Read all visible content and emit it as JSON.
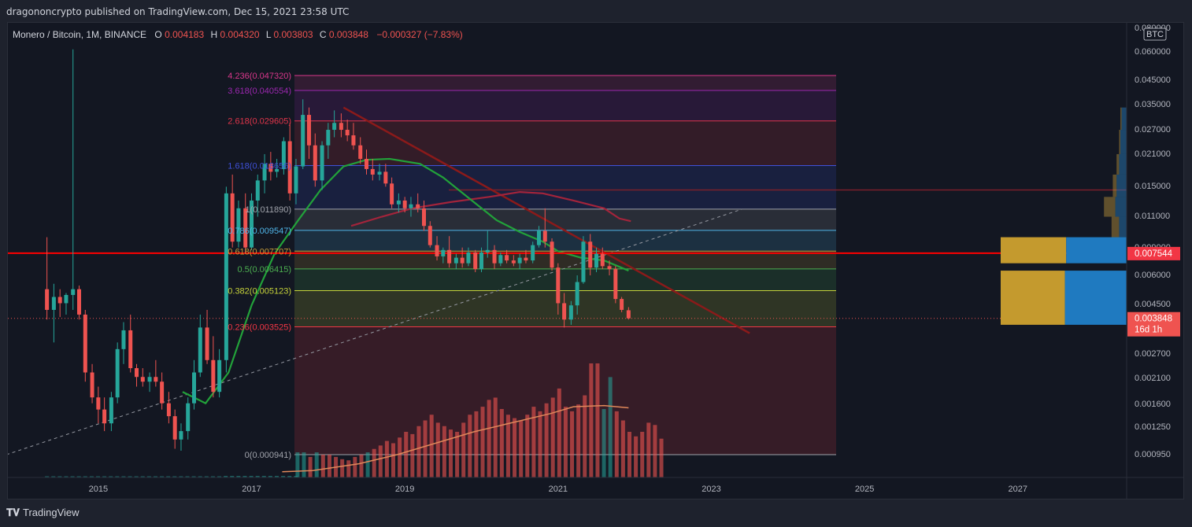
{
  "header": {
    "text": "dragononcrypto published on TradingView.com, Dec 15, 2021 23:58 UTC"
  },
  "footer": {
    "brand": "TradingView",
    "logo": "tradingview-logo"
  },
  "legend": {
    "symbol": "Monero / Bitcoin, 1M, BINANCE",
    "o_label": "O",
    "o_value": "0.004183",
    "h_label": "H",
    "h_value": "0.004320",
    "l_label": "L",
    "l_value": "0.003803",
    "c_label": "C",
    "c_value": "0.003848",
    "change": "−0.000327 (−7.83%)"
  },
  "axis": {
    "unit": "BTC",
    "price_labels": [
      "0.080000",
      "0.060000",
      "0.045000",
      "0.035000",
      "0.027000",
      "0.021000",
      "0.015000",
      "0.011000",
      "0.009000",
      "0.006000",
      "0.004500",
      "0.002700",
      "0.002100",
      "0.001600",
      "0.001250",
      "0.000950"
    ],
    "time_labels": [
      "2015",
      "2017",
      "2019",
      "2021",
      "2023",
      "2025",
      "2027"
    ],
    "current_price": "0.003848",
    "countdown": "16d 1h",
    "hline_price": "0.007544"
  },
  "chart_data": {
    "type": "candlestick",
    "scale": "log",
    "title": "Monero / Bitcoin, 1M, BINANCE",
    "ylim": [
      0.0007,
      0.08
    ],
    "xlim": [
      2013.8,
      2028.4
    ],
    "colors": {
      "up": "#26a69a",
      "down": "#ef5350",
      "fib_line_red": "#f23645",
      "hline": "#ff0000",
      "trendline": "#8b1a1a",
      "ma_green": "#22a23a",
      "ma_red": "#a3243b",
      "volume_ma": "#e0885a"
    },
    "fib_levels": [
      {
        "label": "4.236(0.047320)",
        "value": 0.04732,
        "color": "#d9378b"
      },
      {
        "label": "3.618(0.040554)",
        "value": 0.040554,
        "color": "#9c27b0"
      },
      {
        "label": "2.618(0.029605)",
        "value": 0.029605,
        "color": "#e0354a"
      },
      {
        "label": "1.618(0.018656)",
        "value": 0.018656,
        "color": "#3f51d8"
      },
      {
        "label": "1(0.011890)",
        "value": 0.01189,
        "color": "#a0a3ab"
      },
      {
        "label": "0.786(0.009547)",
        "value": 0.009547,
        "color": "#4fb4e8"
      },
      {
        "label": "0.618(0.007707)",
        "value": 0.007707,
        "color": "#c69b3a"
      },
      {
        "label": "0.5(0.006415)",
        "value": 0.006415,
        "color": "#4caf50"
      },
      {
        "label": "0.382(0.005123)",
        "value": 0.005123,
        "color": "#c5d13a"
      },
      {
        "label": "0.236(0.003525)",
        "value": 0.003525,
        "color": "#f23645"
      },
      {
        "label": "0(0.000941)",
        "value": 0.000941,
        "color": "#a0a3ab"
      }
    ],
    "candles": [
      [
        2014.33,
        0.0052,
        0.0089,
        0.0038,
        0.0042
      ],
      [
        2014.42,
        0.0042,
        0.0055,
        0.003,
        0.0048
      ],
      [
        2014.5,
        0.0048,
        0.0052,
        0.0039,
        0.0045
      ],
      [
        2014.58,
        0.0045,
        0.005,
        0.004,
        0.0049
      ],
      [
        2014.67,
        0.0049,
        0.062,
        0.0042,
        0.0052
      ],
      [
        2014.75,
        0.0052,
        0.0054,
        0.0038,
        0.004
      ],
      [
        2014.83,
        0.004,
        0.0042,
        0.002,
        0.0022
      ],
      [
        2014.92,
        0.0022,
        0.0024,
        0.0016,
        0.0017
      ],
      [
        2015.0,
        0.0017,
        0.0019,
        0.0013,
        0.0015
      ],
      [
        2015.08,
        0.0015,
        0.0017,
        0.0012,
        0.0013
      ],
      [
        2015.17,
        0.0013,
        0.0018,
        0.0012,
        0.0017
      ],
      [
        2015.25,
        0.0017,
        0.003,
        0.0016,
        0.0028
      ],
      [
        2015.33,
        0.0028,
        0.0037,
        0.0024,
        0.0034
      ],
      [
        2015.42,
        0.0034,
        0.004,
        0.0022,
        0.0023
      ],
      [
        2015.5,
        0.0023,
        0.0024,
        0.0019,
        0.0021
      ],
      [
        2015.58,
        0.0021,
        0.0023,
        0.0019,
        0.002
      ],
      [
        2015.67,
        0.002,
        0.0022,
        0.0018,
        0.0021
      ],
      [
        2015.75,
        0.0021,
        0.0025,
        0.0019,
        0.002
      ],
      [
        2015.83,
        0.002,
        0.0022,
        0.0015,
        0.0016
      ],
      [
        2015.92,
        0.0016,
        0.0018,
        0.0013,
        0.0014
      ],
      [
        2016.0,
        0.0014,
        0.0015,
        0.001,
        0.0011
      ],
      [
        2016.08,
        0.0011,
        0.0013,
        0.00098,
        0.0012
      ],
      [
        2016.17,
        0.0012,
        0.0017,
        0.0011,
        0.0016
      ],
      [
        2016.25,
        0.0016,
        0.0025,
        0.0015,
        0.0022
      ],
      [
        2016.33,
        0.0022,
        0.004,
        0.0021,
        0.0035
      ],
      [
        2016.42,
        0.0035,
        0.0042,
        0.0024,
        0.0025
      ],
      [
        2016.5,
        0.0025,
        0.0032,
        0.0017,
        0.0018
      ],
      [
        2016.58,
        0.0018,
        0.0028,
        0.0017,
        0.0025
      ],
      [
        2016.67,
        0.0025,
        0.015,
        0.0022,
        0.014
      ],
      [
        2016.75,
        0.014,
        0.017,
        0.008,
        0.0085
      ],
      [
        2016.83,
        0.0085,
        0.013,
        0.008,
        0.012
      ],
      [
        2016.92,
        0.012,
        0.014,
        0.0075,
        0.008
      ],
      [
        2017.0,
        0.008,
        0.014,
        0.0078,
        0.013
      ],
      [
        2017.08,
        0.013,
        0.017,
        0.011,
        0.016
      ],
      [
        2017.17,
        0.016,
        0.021,
        0.014,
        0.019
      ],
      [
        2017.25,
        0.019,
        0.0215,
        0.016,
        0.0175
      ],
      [
        2017.33,
        0.0175,
        0.02,
        0.0165,
        0.018
      ],
      [
        2017.42,
        0.018,
        0.025,
        0.017,
        0.024
      ],
      [
        2017.5,
        0.024,
        0.029,
        0.013,
        0.014
      ],
      [
        2017.58,
        0.014,
        0.02,
        0.0125,
        0.0185
      ],
      [
        2017.67,
        0.0185,
        0.037,
        0.018,
        0.0315
      ],
      [
        2017.75,
        0.0315,
        0.034,
        0.02,
        0.023
      ],
      [
        2017.83,
        0.023,
        0.026,
        0.015,
        0.016
      ],
      [
        2017.92,
        0.016,
        0.024,
        0.0145,
        0.023
      ],
      [
        2018.0,
        0.023,
        0.029,
        0.02,
        0.027
      ],
      [
        2018.08,
        0.027,
        0.033,
        0.025,
        0.029
      ],
      [
        2018.17,
        0.029,
        0.032,
        0.025,
        0.027
      ],
      [
        2018.25,
        0.027,
        0.03,
        0.024,
        0.0255
      ],
      [
        2018.33,
        0.0255,
        0.029,
        0.022,
        0.023
      ],
      [
        2018.42,
        0.023,
        0.025,
        0.019,
        0.02
      ],
      [
        2018.5,
        0.02,
        0.022,
        0.017,
        0.018
      ],
      [
        2018.58,
        0.018,
        0.02,
        0.016,
        0.017
      ],
      [
        2018.67,
        0.017,
        0.019,
        0.016,
        0.0175
      ],
      [
        2018.75,
        0.0175,
        0.019,
        0.015,
        0.0155
      ],
      [
        2018.83,
        0.0155,
        0.0165,
        0.012,
        0.0125
      ],
      [
        2018.92,
        0.0125,
        0.014,
        0.0115,
        0.013
      ],
      [
        2019.0,
        0.013,
        0.0135,
        0.0115,
        0.012
      ],
      [
        2019.08,
        0.012,
        0.0135,
        0.011,
        0.0125
      ],
      [
        2019.17,
        0.0125,
        0.014,
        0.0115,
        0.012
      ],
      [
        2019.25,
        0.012,
        0.013,
        0.0095,
        0.01
      ],
      [
        2019.33,
        0.01,
        0.0105,
        0.008,
        0.0082
      ],
      [
        2019.42,
        0.0082,
        0.009,
        0.007,
        0.0073
      ],
      [
        2019.5,
        0.0073,
        0.008,
        0.0068,
        0.0078
      ],
      [
        2019.58,
        0.0078,
        0.009,
        0.0065,
        0.0068
      ],
      [
        2019.67,
        0.0068,
        0.0075,
        0.0064,
        0.0072
      ],
      [
        2019.75,
        0.0072,
        0.008,
        0.0065,
        0.0068
      ],
      [
        2019.83,
        0.0068,
        0.008,
        0.0066,
        0.0076
      ],
      [
        2019.92,
        0.0076,
        0.0078,
        0.0062,
        0.0064
      ],
      [
        2020.0,
        0.0064,
        0.008,
        0.0062,
        0.0076
      ],
      [
        2020.08,
        0.0076,
        0.0095,
        0.0072,
        0.0078
      ],
      [
        2020.17,
        0.0078,
        0.0082,
        0.0064,
        0.0068
      ],
      [
        2020.25,
        0.0068,
        0.0076,
        0.0066,
        0.0074
      ],
      [
        2020.33,
        0.0074,
        0.0078,
        0.0068,
        0.007
      ],
      [
        2020.42,
        0.007,
        0.0074,
        0.0066,
        0.0068
      ],
      [
        2020.5,
        0.0068,
        0.0075,
        0.0064,
        0.0072
      ],
      [
        2020.58,
        0.0072,
        0.0078,
        0.0068,
        0.007
      ],
      [
        2020.67,
        0.007,
        0.0085,
        0.0068,
        0.0082
      ],
      [
        2020.75,
        0.0082,
        0.01,
        0.008,
        0.0095
      ],
      [
        2020.83,
        0.0095,
        0.012,
        0.008,
        0.0085
      ],
      [
        2020.92,
        0.0085,
        0.0088,
        0.0063,
        0.0065
      ],
      [
        2021.0,
        0.0065,
        0.0068,
        0.004,
        0.0045
      ],
      [
        2021.08,
        0.0045,
        0.005,
        0.0035,
        0.0038
      ],
      [
        2021.17,
        0.0038,
        0.0046,
        0.0036,
        0.0044
      ],
      [
        2021.25,
        0.0044,
        0.006,
        0.004,
        0.0056
      ],
      [
        2021.33,
        0.0056,
        0.009,
        0.0055,
        0.0085
      ],
      [
        2021.42,
        0.0085,
        0.0092,
        0.006,
        0.0065
      ],
      [
        2021.5,
        0.0065,
        0.008,
        0.0062,
        0.0075
      ],
      [
        2021.58,
        0.0075,
        0.008,
        0.0064,
        0.0066
      ],
      [
        2021.67,
        0.0066,
        0.007,
        0.006,
        0.0064
      ],
      [
        2021.75,
        0.0064,
        0.0066,
        0.0045,
        0.0047
      ],
      [
        2021.83,
        0.0047,
        0.0048,
        0.0041,
        0.0042
      ],
      [
        2021.92,
        0.004183,
        0.00432,
        0.003803,
        0.003848
      ]
    ],
    "volume_start": 2017.6,
    "volume_step": 0.0833,
    "volume_rel": [
      0.22,
      0.22,
      0.18,
      0.22,
      0.2,
      0.2,
      0.18,
      0.16,
      0.15,
      0.18,
      0.2,
      0.22,
      0.25,
      0.28,
      0.32,
      0.3,
      0.35,
      0.4,
      0.38,
      0.45,
      0.5,
      0.55,
      0.48,
      0.45,
      0.42,
      0.4,
      0.48,
      0.55,
      0.58,
      0.62,
      0.68,
      0.7,
      0.6,
      0.55,
      0.52,
      0.5,
      0.55,
      0.62,
      0.58,
      0.65,
      0.7,
      0.78,
      0.62,
      0.58,
      0.64,
      0.72,
      1.0,
      1.0,
      0.6,
      0.88,
      0.58,
      0.5,
      0.4,
      0.36,
      0.4,
      0.48,
      0.46,
      0.34
    ],
    "volume_up": [
      true,
      true,
      false,
      true,
      false,
      false,
      false,
      false,
      false,
      false,
      false,
      true,
      false,
      false,
      false,
      false,
      false,
      false,
      false,
      false,
      false,
      false,
      false,
      false,
      false,
      false,
      false,
      false,
      false,
      false,
      false,
      false,
      false,
      false,
      false,
      false,
      false,
      false,
      false,
      false,
      false,
      false,
      false,
      false,
      false,
      false,
      false,
      false,
      true,
      true,
      false,
      false,
      false,
      false,
      false,
      false,
      false,
      false
    ],
    "trendline": [
      [
        2018.2,
        0.034
      ],
      [
        2023.5,
        0.0033
      ]
    ],
    "diagonal_dashed": [
      [
        2013.8,
        0.000941
      ],
      [
        2023.4,
        0.01189
      ]
    ],
    "hline_long": 0.0145,
    "ma_green": [
      [
        2016.1,
        0.0018
      ],
      [
        2016.4,
        0.0016
      ],
      [
        2016.7,
        0.0022
      ],
      [
        2017.0,
        0.0044
      ],
      [
        2017.3,
        0.0075
      ],
      [
        2017.6,
        0.0105
      ],
      [
        2017.9,
        0.0145
      ],
      [
        2018.2,
        0.0185
      ],
      [
        2018.5,
        0.0198
      ],
      [
        2018.8,
        0.02
      ],
      [
        2019.2,
        0.019
      ],
      [
        2019.5,
        0.0165
      ],
      [
        2019.9,
        0.0128
      ],
      [
        2020.2,
        0.0106
      ],
      [
        2020.5,
        0.0094
      ],
      [
        2020.8,
        0.0085
      ],
      [
        2021.0,
        0.0077
      ],
      [
        2021.3,
        0.0072
      ],
      [
        2021.6,
        0.007
      ],
      [
        2021.92,
        0.0063
      ]
    ],
    "ma_red": [
      [
        2018.3,
        0.01
      ],
      [
        2018.7,
        0.011
      ],
      [
        2019.1,
        0.012
      ],
      [
        2019.6,
        0.0128
      ],
      [
        2020.1,
        0.0135
      ],
      [
        2020.5,
        0.0142
      ],
      [
        2020.8,
        0.014
      ],
      [
        2021.2,
        0.013
      ],
      [
        2021.6,
        0.012
      ],
      [
        2021.8,
        0.0108
      ],
      [
        2021.95,
        0.0105
      ]
    ],
    "volume_ma": [
      [
        2017.4,
        0.05
      ],
      [
        2017.8,
        0.06
      ],
      [
        2018.4,
        0.12
      ],
      [
        2018.9,
        0.2
      ],
      [
        2019.4,
        0.3
      ],
      [
        2019.9,
        0.4
      ],
      [
        2020.4,
        0.48
      ],
      [
        2020.9,
        0.56
      ],
      [
        2021.2,
        0.62
      ],
      [
        2021.6,
        0.63
      ],
      [
        2021.92,
        0.61
      ]
    ],
    "volume_profile": [
      {
        "from": 0.0068,
        "to": 0.0089,
        "left_rel": 0.52,
        "right_rel": 0.48
      },
      {
        "from": 0.0036,
        "to": 0.0063,
        "left_rel": 0.51,
        "right_rel": 0.49
      },
      {
        "from": 0.0089,
        "to": 0.011,
        "left_rel": 0.06,
        "right_rel": 0.06
      },
      {
        "from": 0.011,
        "to": 0.0135,
        "left_rel": 0.09,
        "right_rel": 0.09
      },
      {
        "from": 0.0135,
        "to": 0.017,
        "left_rel": 0.03,
        "right_rel": 0.08
      },
      {
        "from": 0.017,
        "to": 0.021,
        "left_rel": 0.02,
        "right_rel": 0.06
      },
      {
        "from": 0.021,
        "to": 0.027,
        "left_rel": 0.01,
        "right_rel": 0.05
      },
      {
        "from": 0.027,
        "to": 0.034,
        "left_rel": 0.01,
        "right_rel": 0.04
      }
    ]
  }
}
